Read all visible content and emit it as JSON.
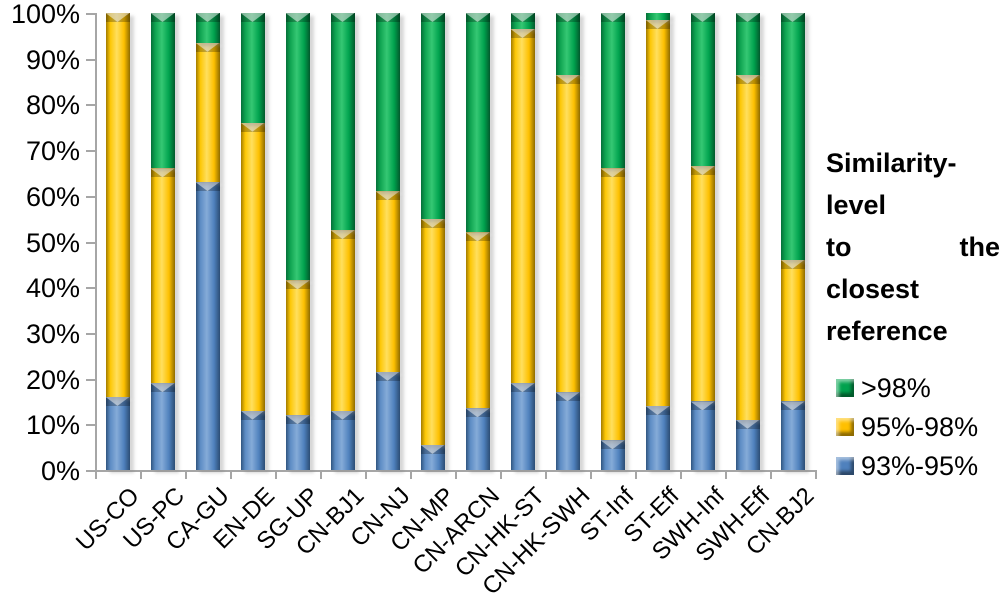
{
  "legend": {
    "title": "Similarity-level to the closest reference",
    "title_lines": [
      "Similarity-level",
      "to the closest",
      "reference"
    ],
    "items": [
      {
        "label": ">98%",
        "color": "#00A24E",
        "series": "green"
      },
      {
        "label": "95%-98%",
        "color": "#FFC000",
        "series": "yellow"
      },
      {
        "label": "93%-95%",
        "color": "#4F81BD",
        "series": "blue"
      }
    ]
  },
  "chart_data": {
    "type": "bar",
    "stacked": true,
    "stacked_unit": "percent",
    "title": "",
    "xlabel": "",
    "ylabel": "",
    "ylim": [
      0,
      100
    ],
    "y_ticks": [
      "0%",
      "10%",
      "20%",
      "30%",
      "40%",
      "50%",
      "60%",
      "70%",
      "80%",
      "90%",
      "100%"
    ],
    "grid": false,
    "legend_position": "right",
    "categories": [
      "US-CO",
      "US-PC",
      "CA-GU",
      "EN-DE",
      "SG-UP",
      "CN-BJ1",
      "CN-NJ",
      "CN-MP",
      "CN-ARCN",
      "CN-HK-ST",
      "CN-HK-SWH",
      "ST-Inf",
      "ST-Eff",
      "SWH-Inf",
      "SWH-Eff",
      "CN-BJ2"
    ],
    "series": [
      {
        "name": "93%-95%",
        "color": "#4F81BD",
        "css": "blue",
        "values": [
          16,
          19,
          63,
          13,
          12,
          13,
          21.5,
          5.5,
          13.5,
          19,
          17,
          6.5,
          14,
          15,
          11,
          15
        ]
      },
      {
        "name": "95%-98%",
        "color": "#FFC000",
        "css": "yellow",
        "values": [
          84,
          47,
          30.5,
          63,
          29.5,
          39.5,
          39.5,
          49.5,
          38.5,
          77.5,
          69.5,
          59.5,
          84.5,
          51.5,
          75.5,
          31
        ]
      },
      {
        "name": ">98%",
        "color": "#00A24E",
        "css": "green",
        "values": [
          0,
          34,
          6.5,
          24,
          58.5,
          47.5,
          39,
          45,
          48,
          3.5,
          13.5,
          34,
          1.5,
          33.5,
          13.5,
          54
        ]
      }
    ],
    "axis_color": "#a6a6a6"
  }
}
